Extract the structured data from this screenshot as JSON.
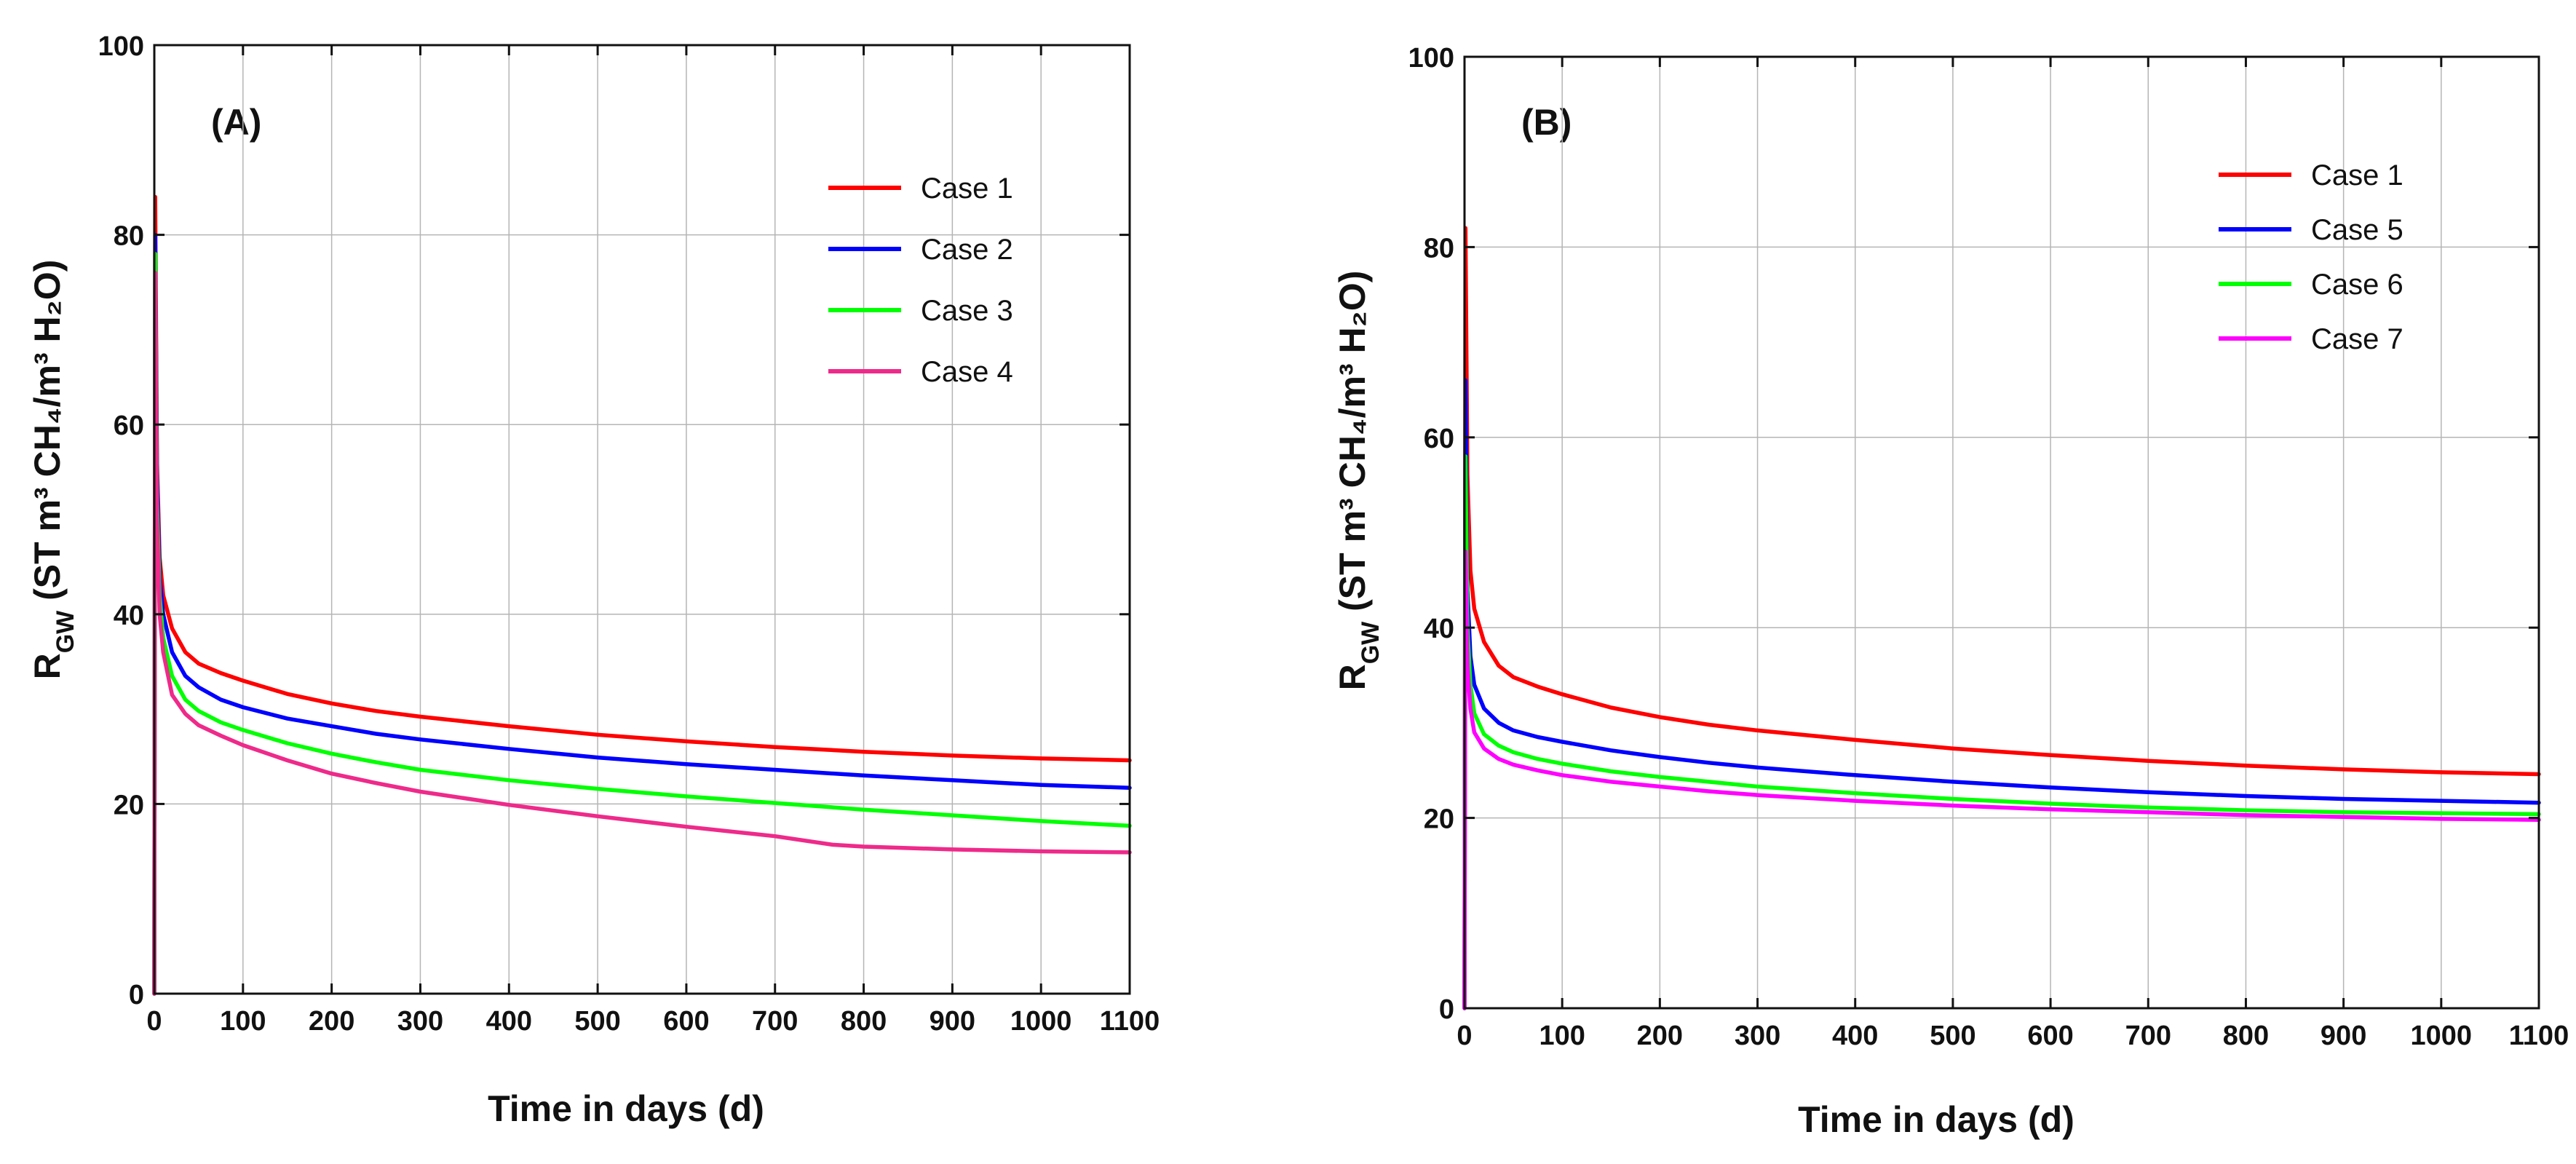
{
  "chart_data": [
    {
      "type": "line",
      "panel_label": "(A)",
      "title": "",
      "xlabel": "Time in days (d)",
      "ylabel": {
        "main": "R",
        "sub": "GW",
        "rest": " (ST m³ CH₄/m³ H₂O)"
      },
      "xlim": [
        0,
        1100
      ],
      "ylim": [
        0,
        100
      ],
      "x_ticks": [
        0,
        100,
        200,
        300,
        400,
        500,
        600,
        700,
        800,
        900,
        1000,
        1100
      ],
      "y_ticks": [
        0,
        20,
        40,
        60,
        80,
        100
      ],
      "grid": true,
      "legend_position": "top-right",
      "series": [
        {
          "name": "Case 1",
          "color": "#ff0000",
          "x": [
            0,
            1,
            3,
            6,
            10,
            20,
            35,
            50,
            75,
            100,
            150,
            200,
            250,
            300,
            400,
            500,
            600,
            700,
            800,
            900,
            1000,
            1100
          ],
          "values": [
            0,
            84,
            56,
            46,
            42,
            38.5,
            36,
            34.8,
            33.8,
            33,
            31.6,
            30.6,
            29.8,
            29.2,
            28.2,
            27.3,
            26.6,
            26,
            25.5,
            25.1,
            24.8,
            24.6
          ]
        },
        {
          "name": "Case 2",
          "color": "#0000ff",
          "x": [
            0,
            1,
            3,
            6,
            10,
            20,
            35,
            50,
            75,
            100,
            150,
            200,
            250,
            300,
            400,
            500,
            600,
            700,
            800,
            900,
            1000,
            1100
          ],
          "values": [
            0,
            80,
            55,
            44,
            40,
            36,
            33.5,
            32.3,
            31,
            30.2,
            29,
            28.2,
            27.4,
            26.8,
            25.8,
            24.9,
            24.2,
            23.6,
            23,
            22.5,
            22,
            21.7
          ]
        },
        {
          "name": "Case 3",
          "color": "#00ff00",
          "x": [
            0,
            1,
            3,
            6,
            10,
            20,
            35,
            50,
            75,
            100,
            150,
            200,
            250,
            300,
            400,
            500,
            600,
            700,
            800,
            900,
            1000,
            1100
          ],
          "values": [
            0,
            78,
            52,
            42,
            37.5,
            33.5,
            31,
            29.8,
            28.6,
            27.8,
            26.4,
            25.3,
            24.4,
            23.6,
            22.5,
            21.6,
            20.8,
            20.1,
            19.4,
            18.8,
            18.2,
            17.7
          ]
        },
        {
          "name": "Case 4",
          "color": "#ee2a8a",
          "x": [
            0,
            1,
            3,
            6,
            10,
            20,
            35,
            50,
            75,
            100,
            150,
            200,
            250,
            300,
            400,
            500,
            600,
            700,
            765,
            800,
            900,
            1000,
            1100
          ],
          "values": [
            0,
            76,
            50,
            40,
            36,
            31.5,
            29.5,
            28.3,
            27.2,
            26.2,
            24.6,
            23.2,
            22.2,
            21.3,
            19.9,
            18.7,
            17.6,
            16.6,
            15.7,
            15.5,
            15.2,
            15,
            14.9
          ]
        }
      ]
    },
    {
      "type": "line",
      "panel_label": "(B)",
      "title": "",
      "xlabel": "Time in days (d)",
      "ylabel": {
        "main": "R",
        "sub": "GW",
        "rest": " (ST m³ CH₄/m³ H₂O)"
      },
      "xlim": [
        0,
        1100
      ],
      "ylim": [
        0,
        100
      ],
      "x_ticks": [
        0,
        100,
        200,
        300,
        400,
        500,
        600,
        700,
        800,
        900,
        1000,
        1100
      ],
      "y_ticks": [
        0,
        20,
        40,
        60,
        80,
        100
      ],
      "grid": true,
      "legend_position": "top-right",
      "series": [
        {
          "name": "Case 1",
          "color": "#ff0000",
          "x": [
            0,
            1,
            3,
            6,
            10,
            20,
            35,
            50,
            75,
            100,
            150,
            200,
            250,
            300,
            400,
            500,
            600,
            700,
            800,
            900,
            1000,
            1100
          ],
          "values": [
            0,
            82,
            56,
            46,
            42,
            38.5,
            36,
            34.8,
            33.8,
            33,
            31.6,
            30.6,
            29.8,
            29.2,
            28.2,
            27.3,
            26.6,
            26,
            25.5,
            25.1,
            24.8,
            24.6
          ]
        },
        {
          "name": "Case 5",
          "color": "#0000ff",
          "x": [
            0,
            1,
            3,
            6,
            10,
            20,
            35,
            50,
            75,
            100,
            150,
            200,
            250,
            300,
            400,
            500,
            600,
            700,
            800,
            900,
            1000,
            1100
          ],
          "values": [
            0,
            66,
            44,
            37,
            34,
            31.5,
            30,
            29.2,
            28.5,
            28,
            27.1,
            26.4,
            25.8,
            25.3,
            24.5,
            23.8,
            23.2,
            22.7,
            22.3,
            22,
            21.8,
            21.6
          ]
        },
        {
          "name": "Case 6",
          "color": "#00ff00",
          "x": [
            0,
            1,
            3,
            6,
            10,
            20,
            35,
            50,
            75,
            100,
            150,
            200,
            250,
            300,
            400,
            500,
            600,
            700,
            800,
            900,
            1000,
            1100
          ],
          "values": [
            0,
            58,
            40,
            34,
            31,
            28.8,
            27.6,
            26.9,
            26.2,
            25.7,
            24.9,
            24.3,
            23.8,
            23.3,
            22.6,
            22,
            21.5,
            21.1,
            20.8,
            20.6,
            20.5,
            20.4
          ]
        },
        {
          "name": "Case 7",
          "color": "#ff00ff",
          "x": [
            0,
            1,
            3,
            6,
            10,
            20,
            35,
            50,
            75,
            100,
            150,
            200,
            250,
            300,
            400,
            500,
            600,
            700,
            800,
            900,
            1000,
            1100
          ],
          "values": [
            0,
            48,
            36,
            31.5,
            29,
            27.3,
            26.2,
            25.6,
            25,
            24.5,
            23.8,
            23.3,
            22.8,
            22.4,
            21.8,
            21.3,
            20.9,
            20.6,
            20.3,
            20.1,
            19.9,
            19.8
          ]
        }
      ]
    }
  ]
}
